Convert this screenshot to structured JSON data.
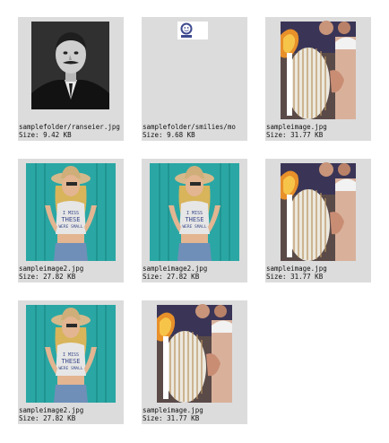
{
  "colors": {
    "tile_background": "#dcdcdc",
    "page_background": "#ffffff",
    "caption_text": "#111111"
  },
  "size_label": "Size:",
  "tiles": [
    {
      "filename": "samplefolder/ranseier.jpg",
      "size": "9.42 KB",
      "thumb": "portrait-photo"
    },
    {
      "filename": "samplefolder/smilies/mo",
      "size": "9.68 KB",
      "thumb": "smiley-icon"
    },
    {
      "filename": "sampleimage.jpg",
      "size": "31.77 KB",
      "thumb": "cigarettes-photo"
    },
    {
      "filename": "sampleimage2.jpg",
      "size": "27.82 KB",
      "thumb": "cowgirl-photo"
    },
    {
      "filename": "sampleimage2.jpg",
      "size": "27.82 KB",
      "thumb": "cowgirl-photo"
    },
    {
      "filename": "sampleimage.jpg",
      "size": "31.77 KB",
      "thumb": "cigarettes-photo"
    },
    {
      "filename": "sampleimage2.jpg",
      "size": "27.82 KB",
      "thumb": "cowgirl-photo"
    },
    {
      "filename": "sampleimage.jpg",
      "size": "31.77 KB",
      "thumb": "cigarettes-photo"
    }
  ]
}
